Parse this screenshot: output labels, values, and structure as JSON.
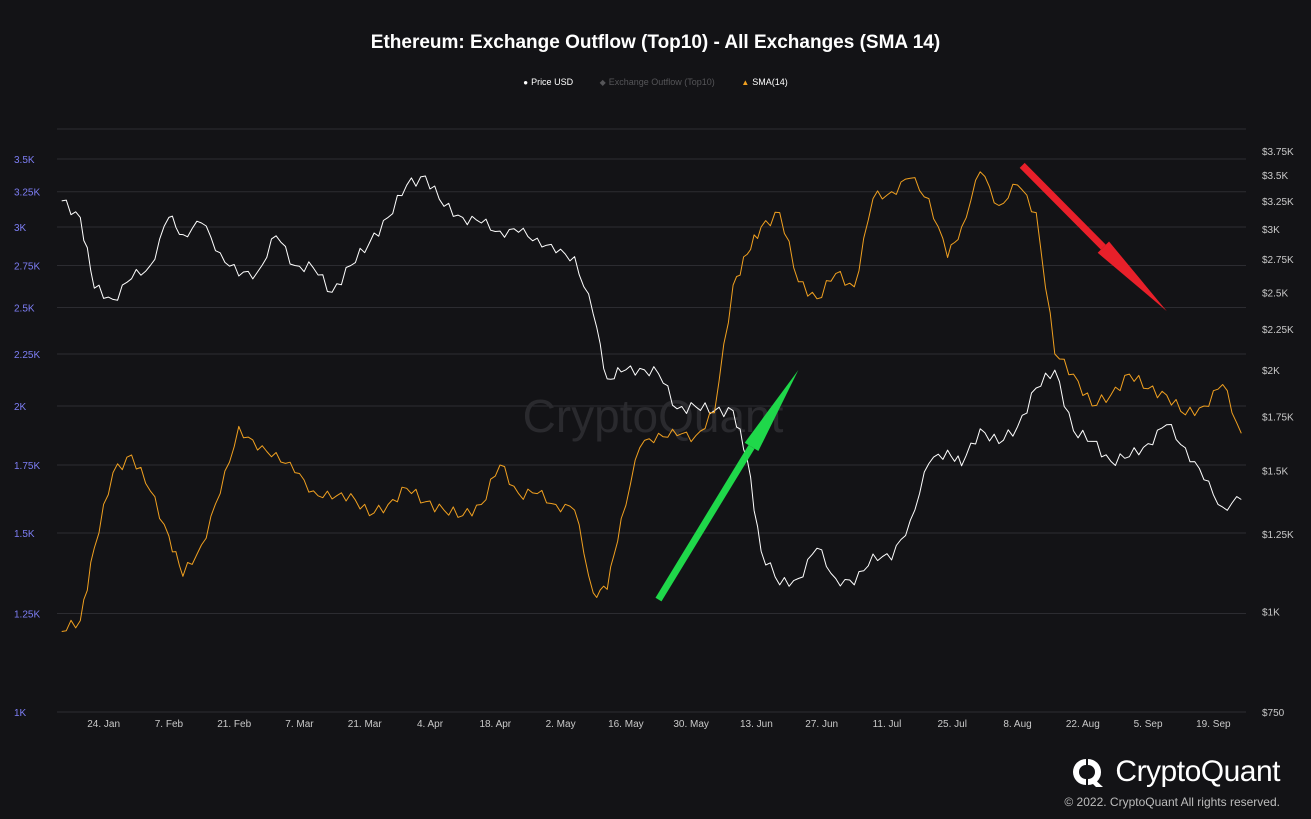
{
  "chart_data": {
    "type": "line",
    "title": "Ethereum: Exchange Outflow (Top10) - All Exchanges (SMA 14)",
    "legend": [
      {
        "name": "Price USD",
        "symbol": "●",
        "color": "#ffffff"
      },
      {
        "name": "Exchange Outflow (Top10)",
        "symbol": "◆",
        "color": "#555558"
      },
      {
        "name": "SMA(14)",
        "symbol": "▲",
        "color": "#f0a020"
      }
    ],
    "x_ticks": [
      "24. Jan",
      "7. Feb",
      "21. Feb",
      "7. Mar",
      "21. Mar",
      "4. Apr",
      "18. Apr",
      "2. May",
      "16. May",
      "30. May",
      "13. Jun",
      "27. Jun",
      "11. Jul",
      "25. Jul",
      "8. Aug",
      "22. Aug",
      "5. Sep",
      "19. Sep"
    ],
    "y_left": {
      "scale": "log",
      "ticks": [
        "1K",
        "1.25K",
        "1.5K",
        "1.75K",
        "2K",
        "2.25K",
        "2.5K",
        "2.75K",
        "3K",
        "3.25K",
        "3.5K"
      ],
      "values": [
        1000,
        1250,
        1500,
        1750,
        2000,
        2250,
        2500,
        2750,
        3000,
        3250,
        3500
      ]
    },
    "y_right": {
      "scale": "log",
      "ticks": [
        "$750",
        "$1K",
        "$1.25K",
        "$1.5K",
        "$1.75K",
        "$2K",
        "$2.25K",
        "$2.5K",
        "$2.75K",
        "$3K",
        "$3.25K",
        "$3.5K",
        "$3.75K"
      ],
      "values": [
        750,
        1000,
        1250,
        1500,
        1750,
        2000,
        2250,
        2500,
        2750,
        3000,
        3250,
        3500,
        3750
      ]
    },
    "series": [
      {
        "name": "Price USD",
        "color": "#ffffff",
        "axis": "right",
        "dates": [
          "2022-01-15",
          "2022-01-19",
          "2022-01-22",
          "2022-01-26",
          "2022-01-30",
          "2022-02-03",
          "2022-02-07",
          "2022-02-10",
          "2022-02-14",
          "2022-02-18",
          "2022-02-22",
          "2022-02-26",
          "2022-03-02",
          "2022-03-06",
          "2022-03-10",
          "2022-03-14",
          "2022-03-18",
          "2022-03-22",
          "2022-03-26",
          "2022-03-30",
          "2022-04-03",
          "2022-04-07",
          "2022-04-11",
          "2022-04-15",
          "2022-04-19",
          "2022-04-23",
          "2022-04-27",
          "2022-05-01",
          "2022-05-05",
          "2022-05-09",
          "2022-05-12",
          "2022-05-15",
          "2022-05-19",
          "2022-05-23",
          "2022-05-27",
          "2022-05-31",
          "2022-06-04",
          "2022-06-08",
          "2022-06-11",
          "2022-06-14",
          "2022-06-18",
          "2022-06-22",
          "2022-06-26",
          "2022-06-30",
          "2022-07-04",
          "2022-07-08",
          "2022-07-12",
          "2022-07-16",
          "2022-07-20",
          "2022-07-24",
          "2022-07-27",
          "2022-07-31",
          "2022-08-04",
          "2022-08-08",
          "2022-08-12",
          "2022-08-16",
          "2022-08-20",
          "2022-08-24",
          "2022-08-28",
          "2022-09-01",
          "2022-09-05",
          "2022-09-09",
          "2022-09-13",
          "2022-09-17",
          "2022-09-21",
          "2022-09-25"
        ],
        "values": [
          3250,
          3100,
          2530,
          2450,
          2600,
          2700,
          3100,
          2950,
          3050,
          2800,
          2620,
          2650,
          2940,
          2700,
          2680,
          2500,
          2700,
          2880,
          3100,
          3400,
          3490,
          3200,
          3100,
          3050,
          2980,
          2970,
          2920,
          2800,
          2770,
          2350,
          1950,
          1990,
          2010,
          1980,
          1790,
          1800,
          1780,
          1780,
          1550,
          1190,
          1080,
          1100,
          1200,
          1100,
          1080,
          1180,
          1160,
          1300,
          1530,
          1590,
          1520,
          1690,
          1620,
          1700,
          1900,
          2000,
          1680,
          1630,
          1540,
          1560,
          1620,
          1710,
          1600,
          1460,
          1350,
          1380
        ]
      },
      {
        "name": "SMA(14)",
        "color": "#f0a020",
        "axis": "left",
        "dates": [
          "2022-01-15",
          "2022-01-19",
          "2022-01-22",
          "2022-01-26",
          "2022-01-30",
          "2022-02-03",
          "2022-02-07",
          "2022-02-10",
          "2022-02-14",
          "2022-02-18",
          "2022-02-22",
          "2022-02-26",
          "2022-03-02",
          "2022-03-06",
          "2022-03-10",
          "2022-03-14",
          "2022-03-18",
          "2022-03-22",
          "2022-03-26",
          "2022-03-30",
          "2022-04-03",
          "2022-04-07",
          "2022-04-11",
          "2022-04-15",
          "2022-04-19",
          "2022-04-23",
          "2022-04-27",
          "2022-05-01",
          "2022-05-05",
          "2022-05-09",
          "2022-05-12",
          "2022-05-15",
          "2022-05-19",
          "2022-05-23",
          "2022-05-27",
          "2022-05-31",
          "2022-06-04",
          "2022-06-08",
          "2022-06-11",
          "2022-06-14",
          "2022-06-18",
          "2022-06-22",
          "2022-06-26",
          "2022-06-30",
          "2022-07-04",
          "2022-07-08",
          "2022-07-12",
          "2022-07-16",
          "2022-07-20",
          "2022-07-24",
          "2022-07-27",
          "2022-07-31",
          "2022-08-04",
          "2022-08-08",
          "2022-08-12",
          "2022-08-16",
          "2022-08-20",
          "2022-08-24",
          "2022-08-28",
          "2022-09-01",
          "2022-09-05",
          "2022-09-09",
          "2022-09-13",
          "2022-09-17",
          "2022-09-21",
          "2022-09-25"
        ],
        "values": [
          1200,
          1230,
          1450,
          1720,
          1790,
          1650,
          1490,
          1360,
          1460,
          1640,
          1910,
          1810,
          1800,
          1720,
          1650,
          1620,
          1640,
          1560,
          1600,
          1660,
          1610,
          1580,
          1560,
          1600,
          1750,
          1640,
          1640,
          1600,
          1580,
          1310,
          1320,
          1550,
          1820,
          1880,
          1870,
          1870,
          1970,
          2630,
          2820,
          3000,
          3100,
          2650,
          2550,
          2700,
          2620,
          3200,
          3250,
          3350,
          3200,
          2800,
          3000,
          3400,
          3150,
          3300,
          3100,
          2250,
          2150,
          2000,
          2050,
          2150,
          2080,
          2050,
          1960,
          2000,
          2100,
          1880
        ]
      }
    ],
    "annotations": [
      {
        "type": "arrow",
        "color": "#1fd84a",
        "direction": "up"
      },
      {
        "type": "arrow",
        "color": "#e8202a",
        "direction": "down"
      }
    ],
    "grid": true,
    "legend_placement": "top-center",
    "watermark": "CryptoQuant"
  },
  "brand": {
    "name": "CryptoQuant",
    "copyright": "© 2022. CryptoQuant All rights reserved."
  }
}
